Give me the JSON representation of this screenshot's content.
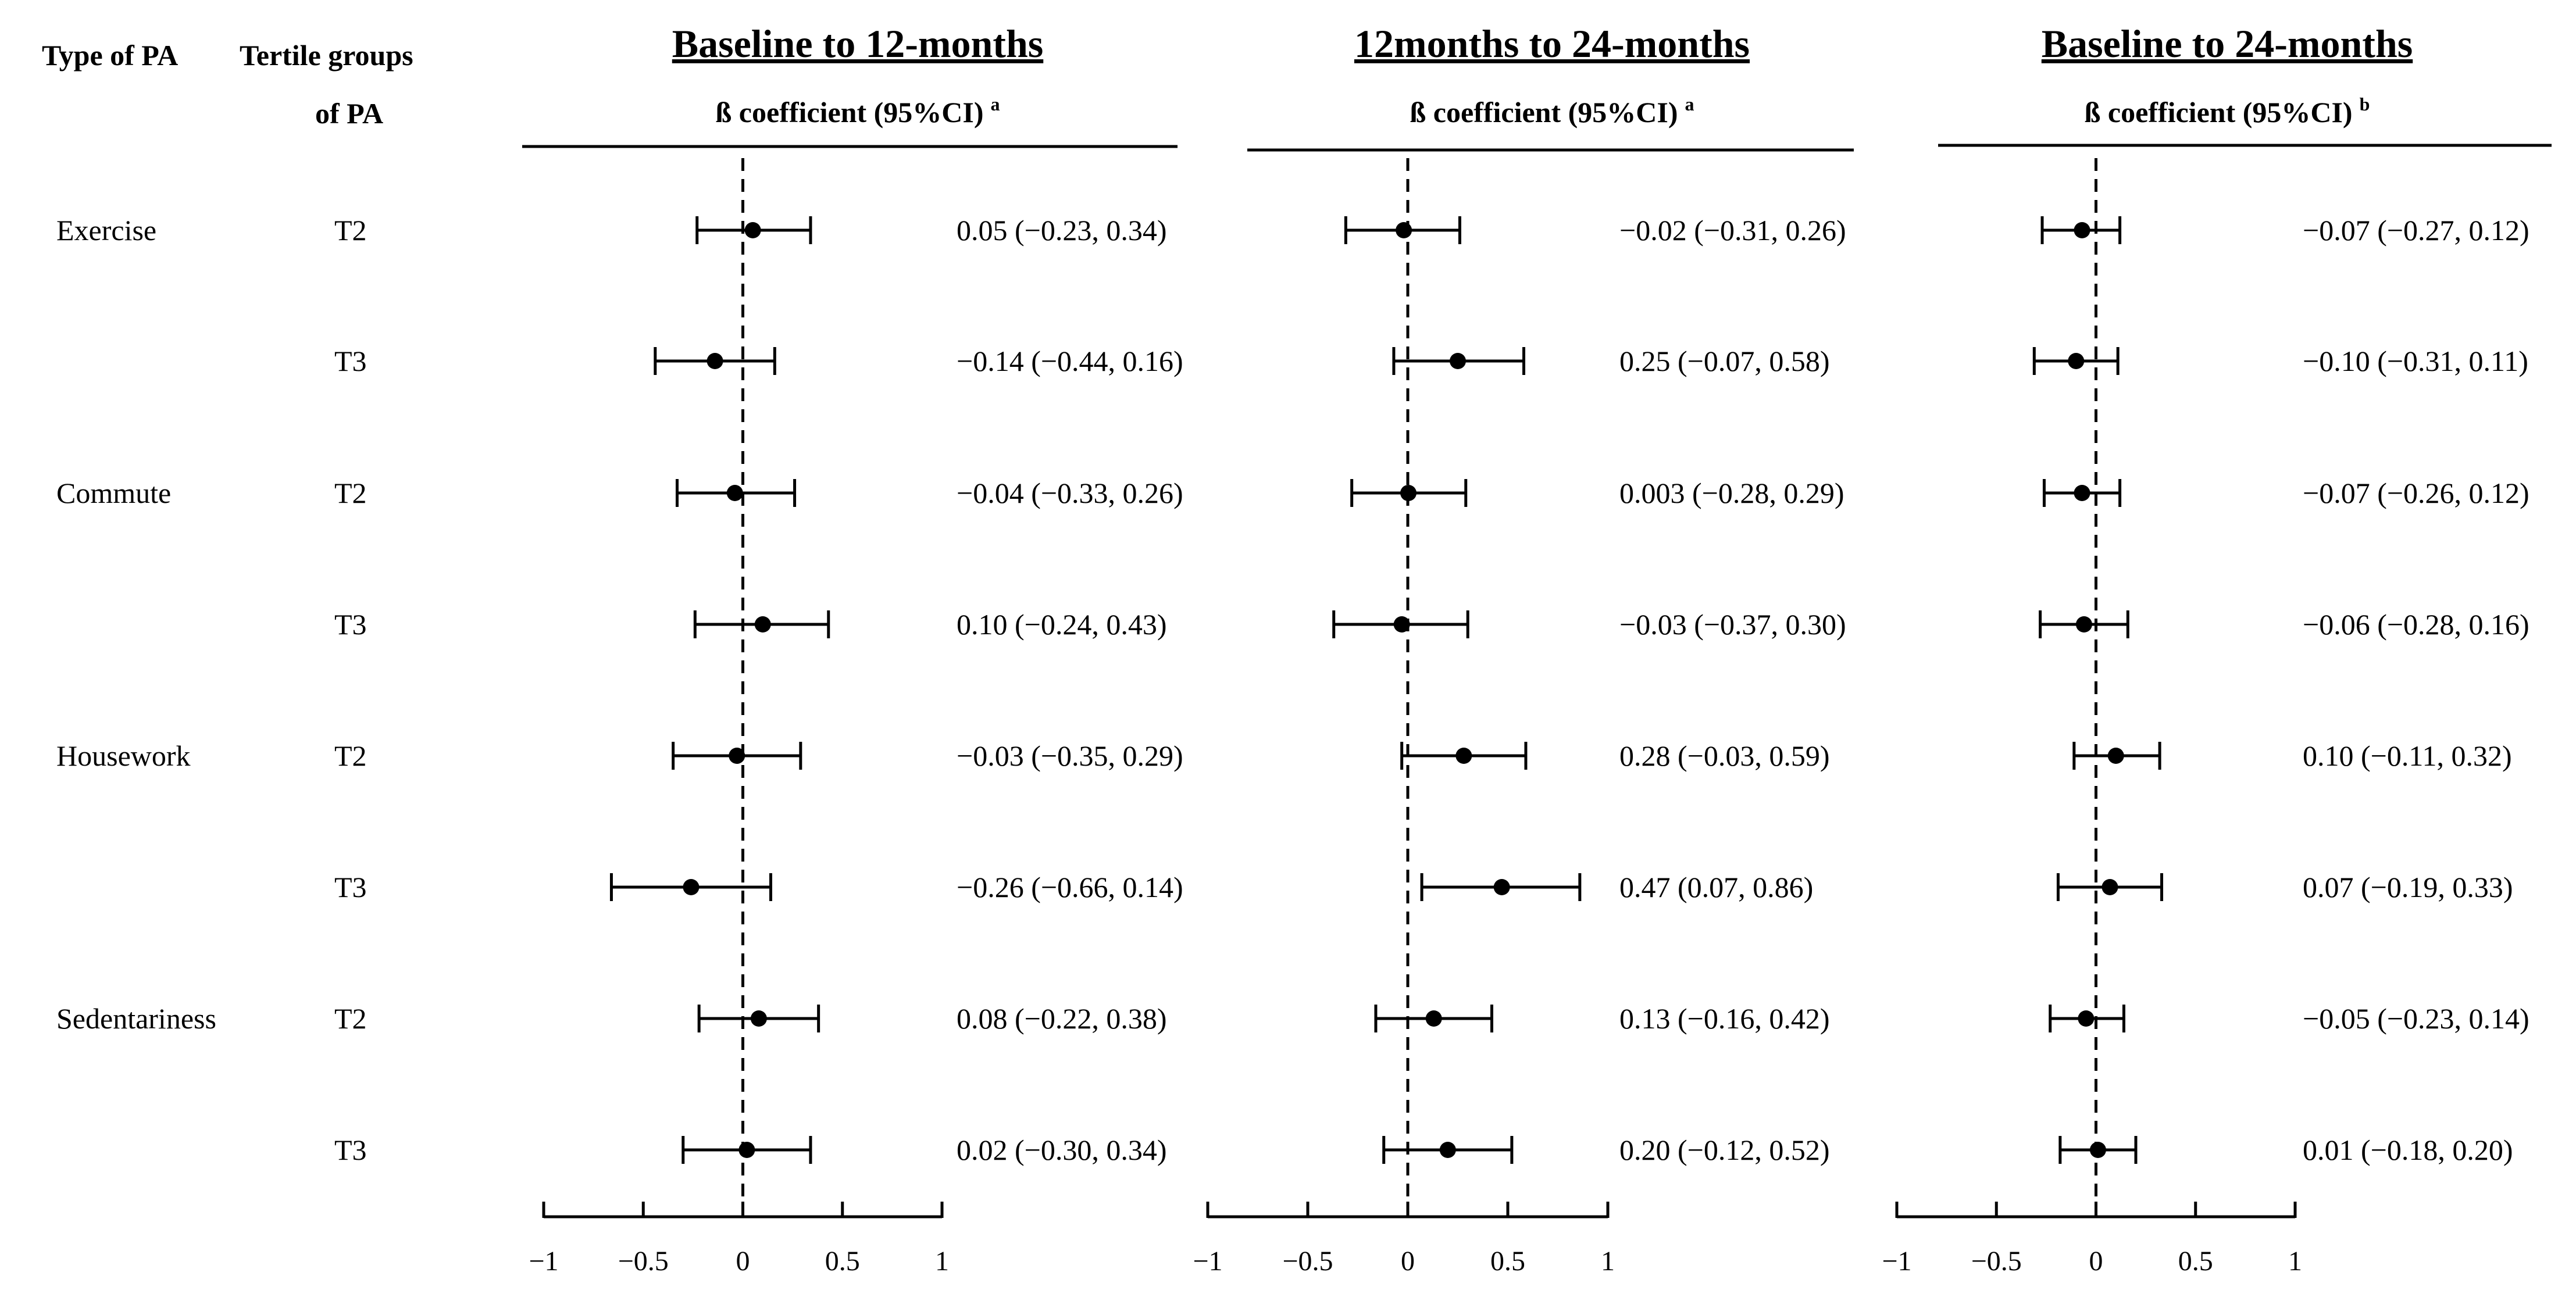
{
  "chart_data": {
    "type": "forest",
    "headers": {
      "type_of_pa": "Type of PA",
      "tertile_line1": "Tertile groups",
      "tertile_line2": "of PA"
    },
    "groups": [
      {
        "type": "Exercise",
        "tertiles": [
          "T2",
          "T3"
        ]
      },
      {
        "type": "Commute",
        "tertiles": [
          "T2",
          "T3"
        ]
      },
      {
        "type": "Housework",
        "tertiles": [
          "T2",
          "T3"
        ]
      },
      {
        "type": "Sedentariness",
        "tertiles": [
          "T2",
          "T3"
        ]
      }
    ],
    "xlim": [
      -1,
      1
    ],
    "ticks": [
      -1,
      -0.5,
      0,
      0.5,
      1
    ],
    "tick_labels": [
      "−1",
      "−0.5",
      "0",
      "0.5",
      "1"
    ],
    "reference_line": 0,
    "panels": [
      {
        "title": "Baseline to 12-months",
        "subtitle": "ß coefficient (95%CI)",
        "superscript": "a",
        "estimates": [
          {
            "est": 0.05,
            "lo": -0.23,
            "hi": 0.34,
            "label": "0.05 (−0.23, 0.34)"
          },
          {
            "est": -0.14,
            "lo": -0.44,
            "hi": 0.16,
            "label": "−0.14 (−0.44, 0.16)"
          },
          {
            "est": -0.04,
            "lo": -0.33,
            "hi": 0.26,
            "label": "−0.04 (−0.33, 0.26)"
          },
          {
            "est": 0.1,
            "lo": -0.24,
            "hi": 0.43,
            "label": "0.10 (−0.24, 0.43)"
          },
          {
            "est": -0.03,
            "lo": -0.35,
            "hi": 0.29,
            "label": "−0.03 (−0.35, 0.29)"
          },
          {
            "est": -0.26,
            "lo": -0.66,
            "hi": 0.14,
            "label": "−0.26 (−0.66, 0.14)"
          },
          {
            "est": 0.08,
            "lo": -0.22,
            "hi": 0.38,
            "label": "0.08 (−0.22, 0.38)"
          },
          {
            "est": 0.02,
            "lo": -0.3,
            "hi": 0.34,
            "label": "0.02 (−0.30, 0.34)"
          }
        ]
      },
      {
        "title": "12months to 24-months",
        "subtitle": "ß coefficient (95%CI)",
        "superscript": "a",
        "estimates": [
          {
            "est": -0.02,
            "lo": -0.31,
            "hi": 0.26,
            "label": "−0.02 (−0.31, 0.26)"
          },
          {
            "est": 0.25,
            "lo": -0.07,
            "hi": 0.58,
            "label": "0.25 (−0.07, 0.58)"
          },
          {
            "est": 0.003,
            "lo": -0.28,
            "hi": 0.29,
            "label": "0.003 (−0.28, 0.29)"
          },
          {
            "est": -0.03,
            "lo": -0.37,
            "hi": 0.3,
            "label": "−0.03 (−0.37, 0.30)"
          },
          {
            "est": 0.28,
            "lo": -0.03,
            "hi": 0.59,
            "label": "0.28 (−0.03, 0.59)"
          },
          {
            "est": 0.47,
            "lo": 0.07,
            "hi": 0.86,
            "label": "0.47 (0.07, 0.86)"
          },
          {
            "est": 0.13,
            "lo": -0.16,
            "hi": 0.42,
            "label": "0.13 (−0.16, 0.42)"
          },
          {
            "est": 0.2,
            "lo": -0.12,
            "hi": 0.52,
            "label": "0.20 (−0.12, 0.52)"
          }
        ]
      },
      {
        "title": "Baseline to 24-months",
        "subtitle": "ß coefficient (95%CI)",
        "superscript": "b",
        "estimates": [
          {
            "est": -0.07,
            "lo": -0.27,
            "hi": 0.12,
            "label": "−0.07 (−0.27, 0.12)"
          },
          {
            "est": -0.1,
            "lo": -0.31,
            "hi": 0.11,
            "label": "−0.10 (−0.31, 0.11)"
          },
          {
            "est": -0.07,
            "lo": -0.26,
            "hi": 0.12,
            "label": "−0.07 (−0.26, 0.12)"
          },
          {
            "est": -0.06,
            "lo": -0.28,
            "hi": 0.16,
            "label": "−0.06 (−0.28, 0.16)"
          },
          {
            "est": 0.1,
            "lo": -0.11,
            "hi": 0.32,
            "label": "0.10 (−0.11, 0.32)"
          },
          {
            "est": 0.07,
            "lo": -0.19,
            "hi": 0.33,
            "label": "0.07 (−0.19, 0.33)"
          },
          {
            "est": -0.05,
            "lo": -0.23,
            "hi": 0.14,
            "label": "−0.05 (−0.23, 0.14)"
          },
          {
            "est": 0.01,
            "lo": -0.18,
            "hi": 0.2,
            "label": "0.01 (−0.18, 0.20)"
          }
        ]
      }
    ]
  }
}
